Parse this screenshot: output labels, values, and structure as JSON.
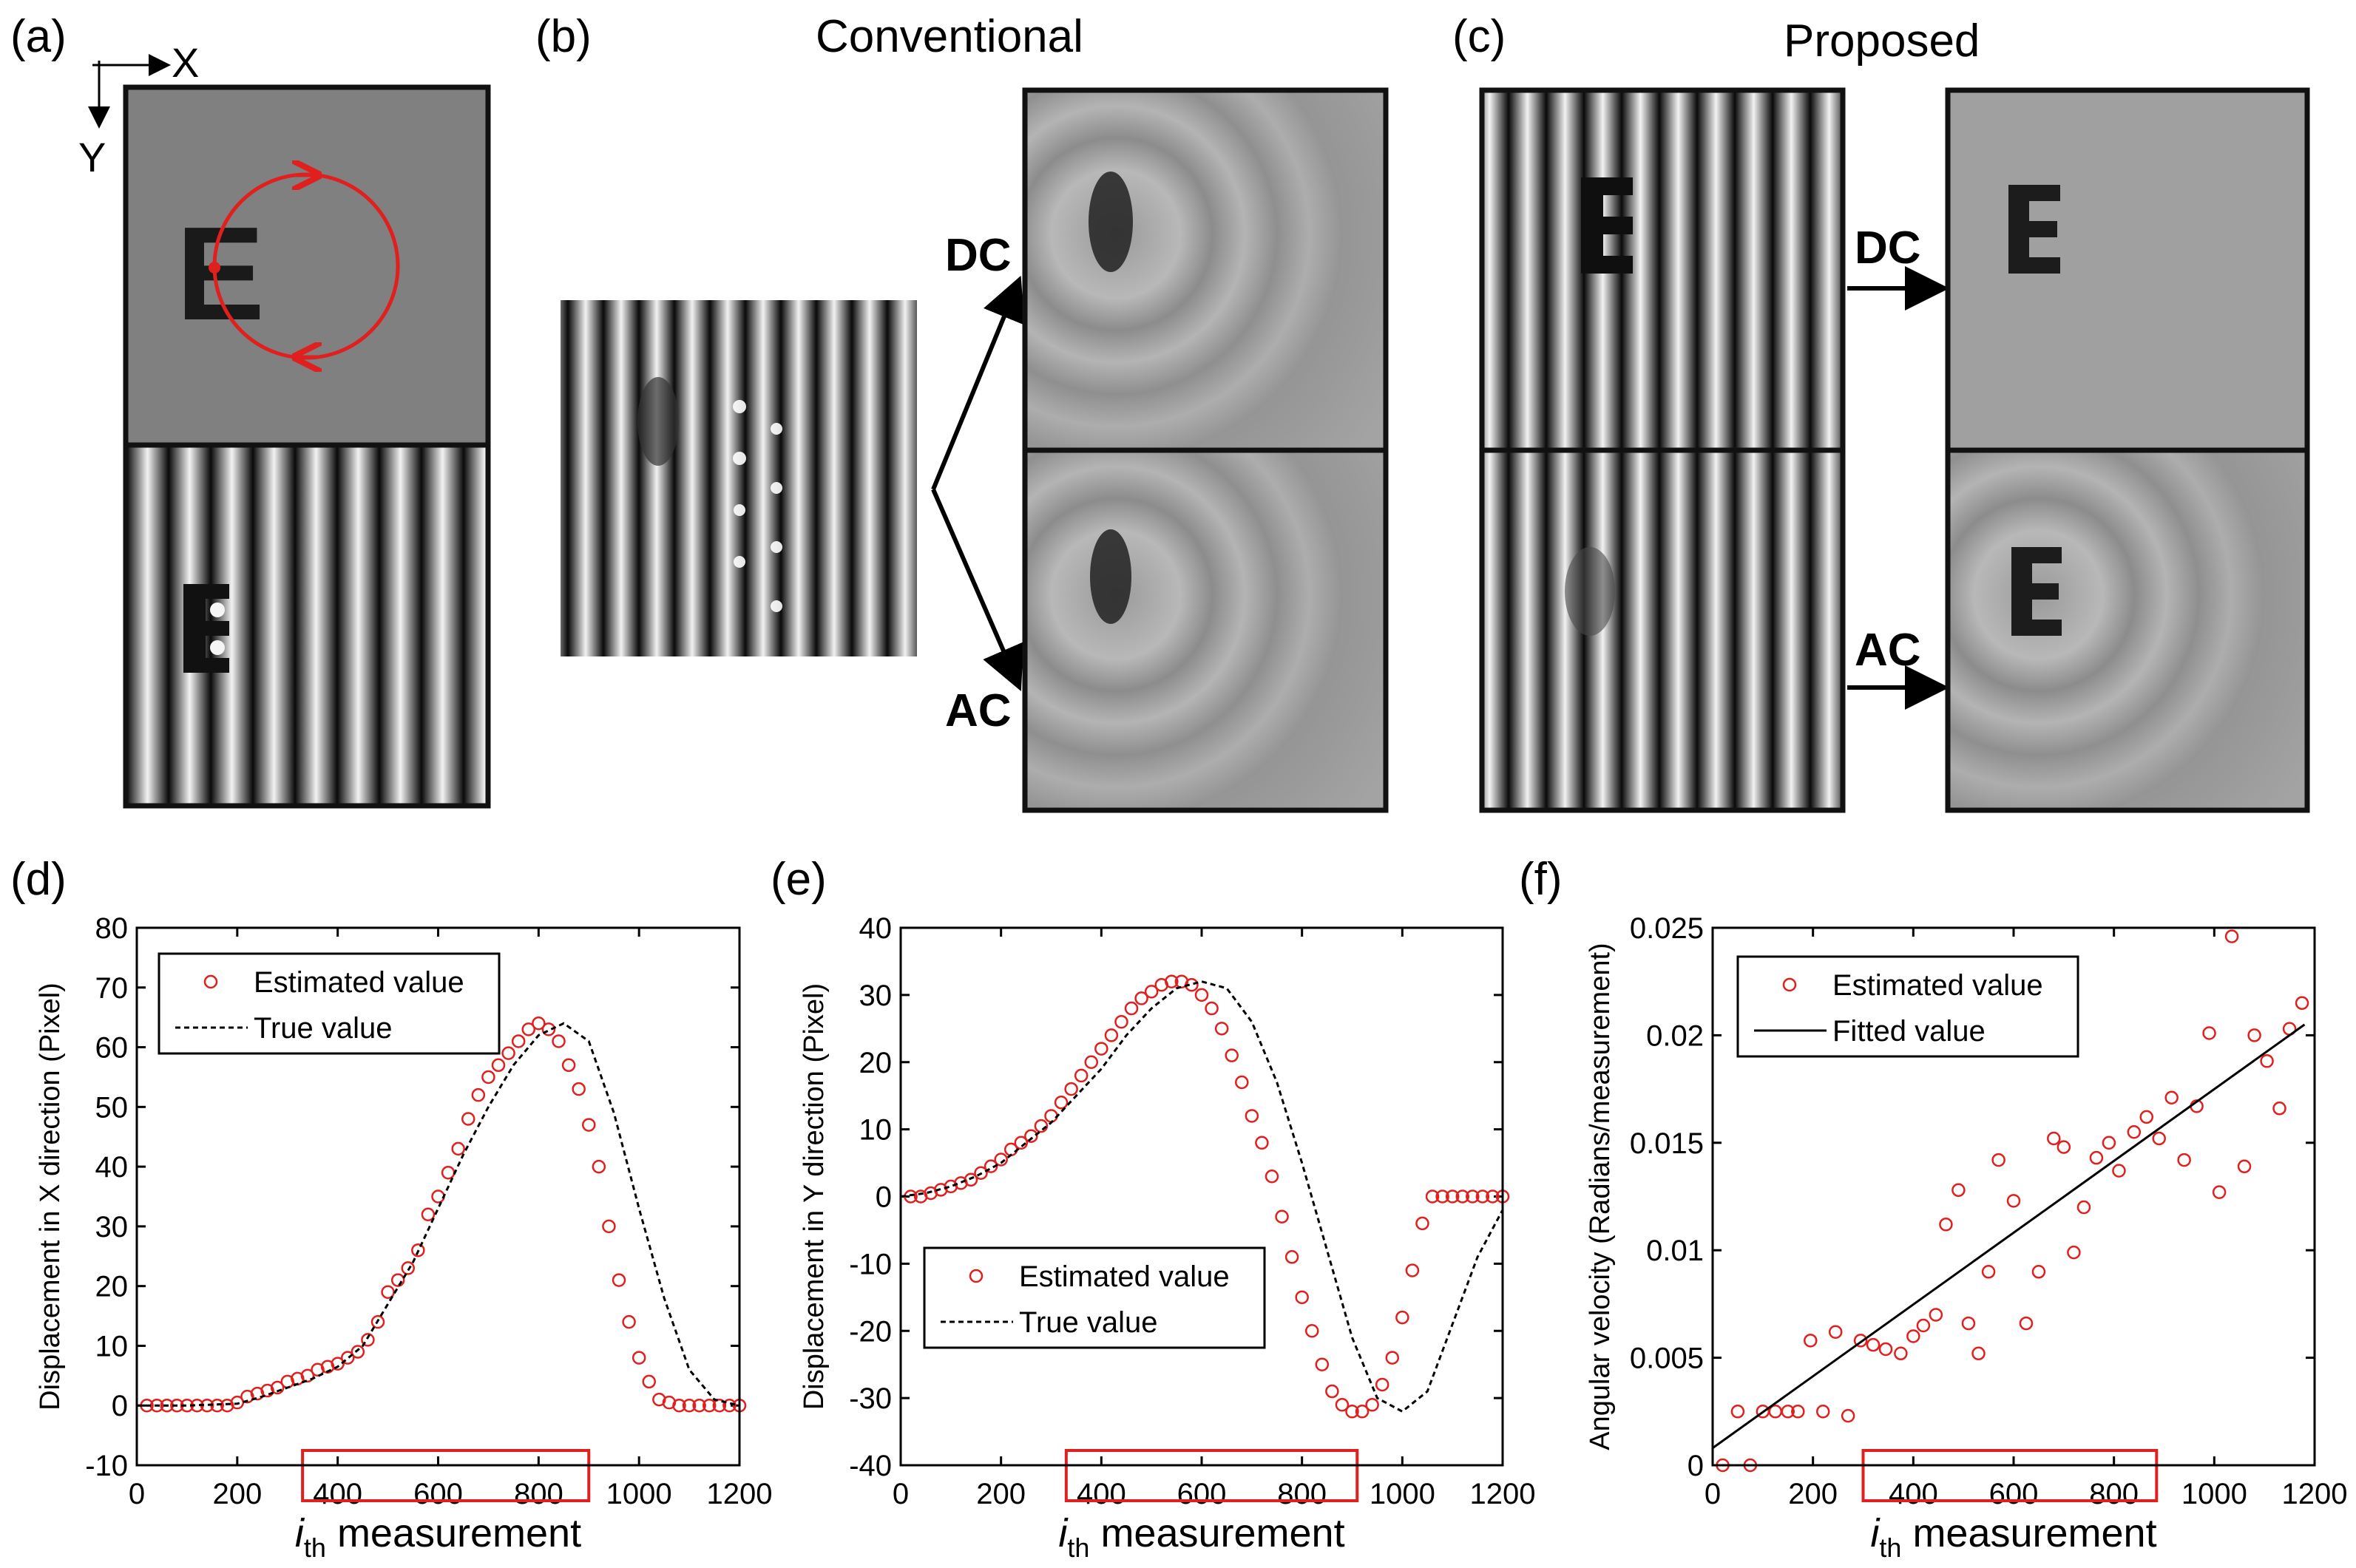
{
  "panels": {
    "a": {
      "label": "(a)",
      "axis_x": "X",
      "axis_y": "Y",
      "letter": "E"
    },
    "b": {
      "label": "(b)",
      "title": "Conventional",
      "dc_label": "DC",
      "ac_label": "AC"
    },
    "c": {
      "label": "(c)",
      "title": "Proposed",
      "dc_label": "DC",
      "ac_label": "AC"
    },
    "d": {
      "label": "(d)"
    },
    "e": {
      "label": "(e)"
    },
    "f": {
      "label": "(f)"
    }
  },
  "colors": {
    "red": "#e0201e",
    "gray_bg": "#808080",
    "frame": "#111111"
  },
  "chart_data": [
    {
      "id": "d",
      "type": "line",
      "xlabel_main": "i",
      "xlabel_sub": "th",
      "xlabel_rest": " measurement",
      "ylabel": "Displacement in X direction (Pixel)",
      "xlim": [
        0,
        1200
      ],
      "ylim": [
        -10,
        80
      ],
      "xticks": [
        0,
        200,
        400,
        600,
        800,
        1000,
        1200
      ],
      "yticks": [
        -10,
        0,
        10,
        20,
        30,
        40,
        50,
        60,
        70,
        80
      ],
      "legend": [
        "Estimated value",
        "True value"
      ],
      "highlight_range": [
        330,
        900
      ],
      "series": [
        {
          "name": "Estimated value",
          "style": "circles",
          "x": [
            20,
            40,
            60,
            80,
            100,
            120,
            140,
            160,
            180,
            200,
            220,
            240,
            260,
            280,
            300,
            320,
            340,
            360,
            380,
            400,
            420,
            440,
            460,
            480,
            500,
            520,
            540,
            560,
            580,
            600,
            620,
            640,
            660,
            680,
            700,
            720,
            740,
            760,
            780,
            800,
            820,
            840,
            860,
            880,
            900,
            920,
            940,
            960,
            980,
            1000,
            1020,
            1040,
            1060,
            1080,
            1100,
            1120,
            1140,
            1160,
            1180,
            1200
          ],
          "y": [
            0,
            0,
            0,
            0,
            0,
            0,
            0,
            0,
            0,
            0.5,
            1.5,
            2,
            2.5,
            3,
            4,
            4.5,
            5,
            6,
            6.5,
            7,
            8,
            9,
            11,
            14,
            19,
            21,
            23,
            26,
            32,
            35,
            39,
            43,
            48,
            52,
            55,
            57,
            59,
            61,
            63,
            64,
            63,
            61,
            57,
            53,
            47,
            40,
            30,
            21,
            14,
            8,
            4,
            1,
            0.5,
            0,
            0,
            0,
            0,
            0,
            0,
            0
          ]
        },
        {
          "name": "True value",
          "style": "dashed",
          "x": [
            0,
            100,
            200,
            250,
            300,
            350,
            400,
            450,
            500,
            550,
            600,
            650,
            700,
            750,
            800,
            850,
            900,
            950,
            1000,
            1050,
            1100,
            1150,
            1200
          ],
          "y": [
            0,
            0,
            0.3,
            1.5,
            3,
            4.5,
            6.5,
            10,
            17,
            24,
            33,
            42,
            50,
            57,
            62,
            64,
            61,
            49,
            33,
            18,
            6,
            1,
            0
          ]
        }
      ]
    },
    {
      "id": "e",
      "type": "line",
      "xlabel_main": "i",
      "xlabel_sub": "th",
      "xlabel_rest": " measurement",
      "ylabel": "Displacement in Y direction (Pixel)",
      "xlim": [
        0,
        1200
      ],
      "ylim": [
        -40,
        40
      ],
      "xticks": [
        0,
        200,
        400,
        600,
        800,
        1000,
        1200
      ],
      "yticks": [
        -40,
        -30,
        -20,
        -10,
        0,
        10,
        20,
        30,
        40
      ],
      "legend": [
        "Estimated value",
        "True value"
      ],
      "highlight_range": [
        330,
        910
      ],
      "series": [
        {
          "name": "Estimated value",
          "style": "circles",
          "x": [
            20,
            40,
            60,
            80,
            100,
            120,
            140,
            160,
            180,
            200,
            220,
            240,
            260,
            280,
            300,
            320,
            340,
            360,
            380,
            400,
            420,
            440,
            460,
            480,
            500,
            520,
            540,
            560,
            580,
            600,
            620,
            640,
            660,
            680,
            700,
            720,
            740,
            760,
            780,
            800,
            820,
            840,
            860,
            880,
            900,
            920,
            940,
            960,
            980,
            1000,
            1020,
            1040,
            1060,
            1080,
            1100,
            1120,
            1140,
            1160,
            1180,
            1200
          ],
          "y": [
            0,
            0,
            0.5,
            1,
            1.5,
            2,
            2.5,
            3.5,
            4.5,
            5.5,
            7,
            8,
            9,
            10.5,
            12,
            14,
            16,
            18,
            20,
            22,
            24,
            26,
            28,
            29.5,
            30.5,
            31.5,
            32,
            32,
            31.5,
            30,
            28,
            25,
            21,
            17,
            12,
            8,
            3,
            -3,
            -9,
            -15,
            -20,
            -25,
            -29,
            -31,
            -32,
            -32,
            -31,
            -28,
            -24,
            -18,
            -11,
            -4,
            0,
            0,
            0,
            0,
            0,
            0,
            0,
            0
          ]
        },
        {
          "name": "True value",
          "style": "dashed",
          "x": [
            0,
            50,
            100,
            150,
            200,
            250,
            300,
            350,
            400,
            450,
            500,
            550,
            600,
            650,
            700,
            750,
            800,
            850,
            900,
            950,
            1000,
            1050,
            1100,
            1150,
            1200
          ],
          "y": [
            0,
            0.5,
            1.5,
            3,
            5,
            8,
            11,
            15,
            19,
            24,
            28,
            31,
            32,
            31,
            26,
            17,
            5,
            -8,
            -21,
            -30,
            -32,
            -29,
            -19,
            -9,
            -2
          ]
        }
      ]
    },
    {
      "id": "f",
      "type": "scatter",
      "xlabel_main": "i",
      "xlabel_sub": "th",
      "xlabel_rest": " measurement",
      "ylabel": "Angular velocity (Radians/measurement)",
      "xlim": [
        0,
        1200
      ],
      "ylim": [
        0,
        0.025
      ],
      "xticks": [
        0,
        200,
        400,
        600,
        800,
        1000,
        1200
      ],
      "yticks": [
        0,
        0.005,
        0.01,
        0.015,
        0.02,
        0.025
      ],
      "ytick_labels": [
        "0",
        "0.005",
        "0.01",
        "0.015",
        "0.02",
        "0.025"
      ],
      "legend": [
        "Estimated value",
        "Fitted value"
      ],
      "highlight_range": [
        300,
        885
      ],
      "series": [
        {
          "name": "Estimated value",
          "style": "circles",
          "x": [
            20,
            50,
            75,
            100,
            125,
            150,
            170,
            195,
            220,
            245,
            270,
            295,
            320,
            345,
            375,
            400,
            420,
            445,
            465,
            490,
            510,
            530,
            550,
            570,
            600,
            625,
            650,
            680,
            700,
            720,
            740,
            765,
            790,
            810,
            840,
            865,
            890,
            915,
            940,
            965,
            990,
            1010,
            1035,
            1060,
            1080,
            1105,
            1130,
            1150,
            1175
          ],
          "y": [
            0,
            0.0025,
            0,
            0.0025,
            0.0025,
            0.0025,
            0.0025,
            0.0058,
            0.0025,
            0.0062,
            0.0023,
            0.0058,
            0.0056,
            0.0054,
            0.0052,
            0.006,
            0.0065,
            0.007,
            0.0112,
            0.0128,
            0.0066,
            0.0052,
            0.009,
            0.0142,
            0.0123,
            0.0066,
            0.009,
            0.0152,
            0.0148,
            0.0099,
            0.012,
            0.0143,
            0.015,
            0.0137,
            0.0155,
            0.0162,
            0.0152,
            0.0171,
            0.0142,
            0.0167,
            0.0201,
            0.0127,
            0.0246,
            0.0139,
            0.02,
            0.0188,
            0.0166,
            0.0203,
            0.0215
          ]
        },
        {
          "name": "Fitted value",
          "style": "solid",
          "x": [
            0,
            1180
          ],
          "y": [
            0.0008,
            0.0205
          ]
        }
      ]
    }
  ]
}
